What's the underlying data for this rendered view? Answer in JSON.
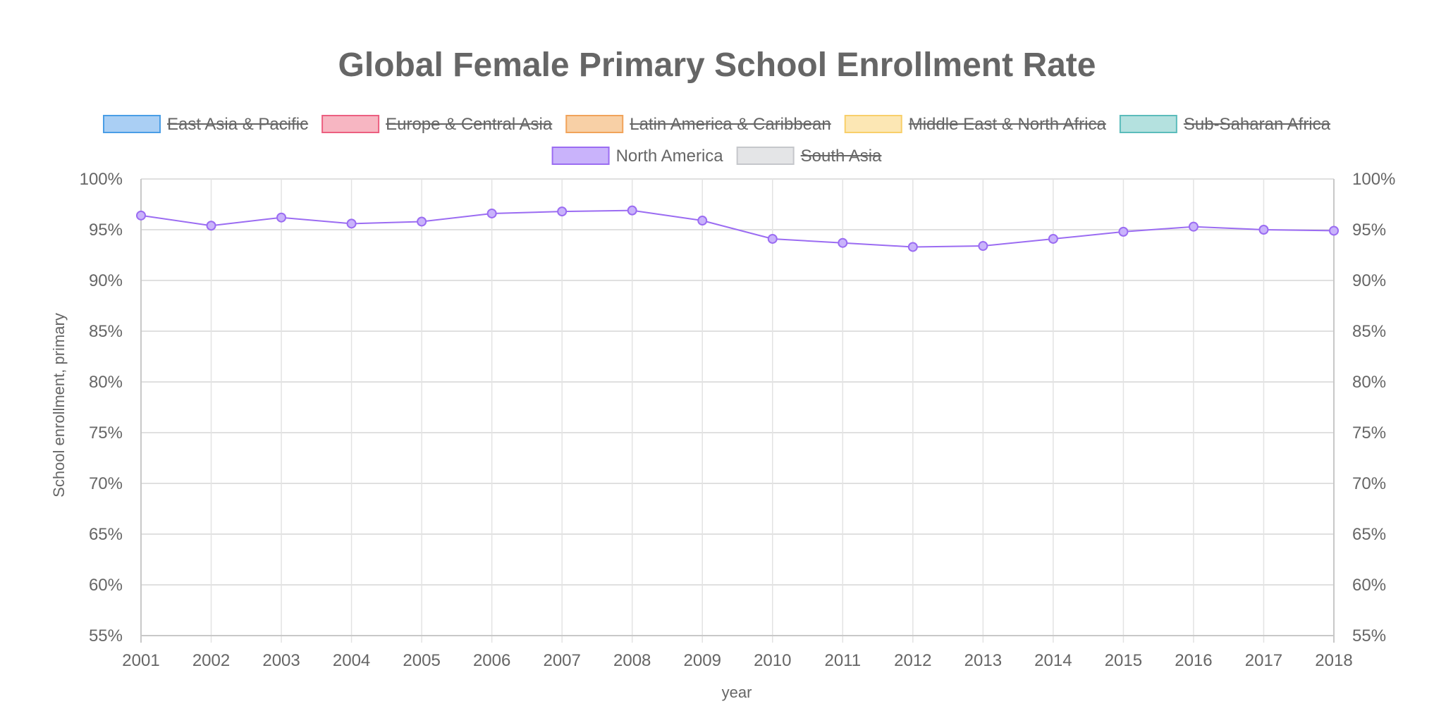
{
  "chart_data": {
    "type": "line",
    "title": "Global Female Primary School Enrollment Rate",
    "xlabel": "year",
    "ylabel": "School enrollment, primary",
    "ylim": [
      55,
      100
    ],
    "y_tick_step": 5,
    "y_tick_suffix": "%",
    "right_axis": true,
    "grid": true,
    "legend_position": "top",
    "x": [
      "2001",
      "2002",
      "2003",
      "2004",
      "2005",
      "2006",
      "2007",
      "2008",
      "2009",
      "2010",
      "2011",
      "2012",
      "2013",
      "2014",
      "2015",
      "2016",
      "2017",
      "2018"
    ],
    "legend": [
      {
        "name": "East Asia & Pacific",
        "hidden": true,
        "fill": "#aacff4",
        "stroke": "#4a9ee6"
      },
      {
        "name": "Europe & Central Asia",
        "hidden": true,
        "fill": "#f7b6c2",
        "stroke": "#ec5f80"
      },
      {
        "name": "Latin America & Caribbean",
        "hidden": true,
        "fill": "#f8d0a6",
        "stroke": "#f1a35a"
      },
      {
        "name": "Middle East & North Africa",
        "hidden": true,
        "fill": "#fce7b4",
        "stroke": "#f8cf6a"
      },
      {
        "name": "Sub-Saharan Africa",
        "hidden": true,
        "fill": "#b4e1df",
        "stroke": "#5bbcbb"
      },
      {
        "name": "North America",
        "hidden": false,
        "fill": "#c9b3fb",
        "stroke": "#9b6cf2"
      },
      {
        "name": "South Asia",
        "hidden": true,
        "fill": "#e4e5e7",
        "stroke": "#c5c7cb"
      }
    ],
    "series": [
      {
        "name": "North America",
        "color": "#9b6cf2",
        "point_fill": "#c9b3fb",
        "values": [
          96.4,
          95.4,
          96.2,
          95.6,
          95.8,
          96.6,
          96.8,
          96.9,
          95.9,
          94.1,
          93.7,
          93.3,
          93.4,
          94.1,
          94.8,
          95.3,
          95.0,
          94.9
        ]
      }
    ]
  }
}
